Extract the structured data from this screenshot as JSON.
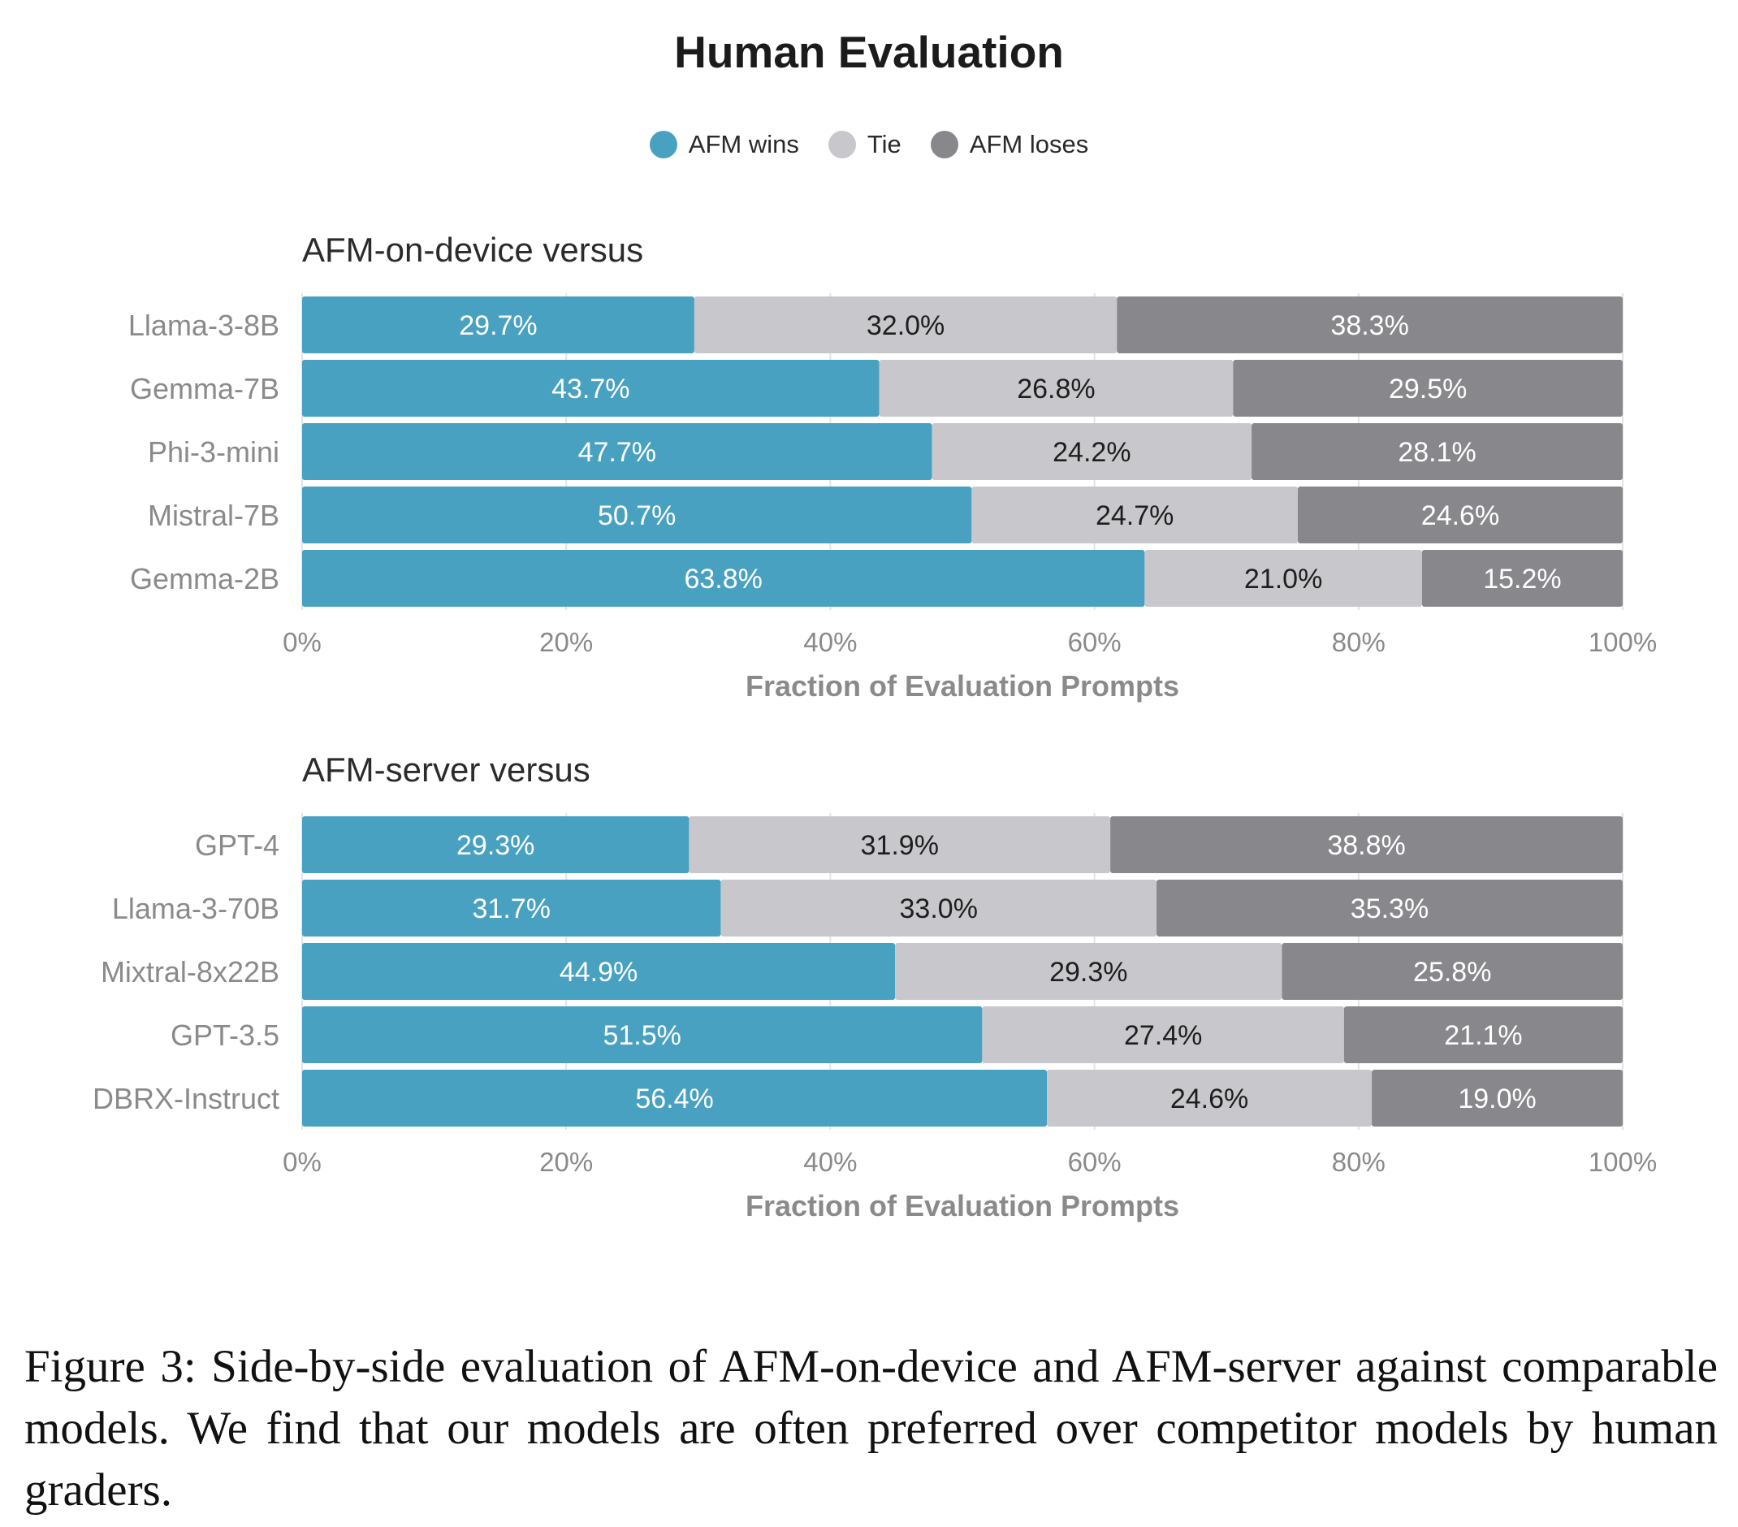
{
  "title": "Human Evaluation",
  "legend": [
    {
      "label": "AFM wins",
      "color": "#48a1c1"
    },
    {
      "label": "Tie",
      "color": "#c8c8cc"
    },
    {
      "label": "AFM loses",
      "color": "#88888c"
    }
  ],
  "chart_data": [
    {
      "type": "bar",
      "orientation": "horizontal",
      "stacked": true,
      "title": "AFM-on-device versus",
      "xlabel": "Fraction of Evaluation Prompts",
      "xlim": [
        0,
        100
      ],
      "xticks": [
        "0%",
        "20%",
        "40%",
        "60%",
        "80%",
        "100%"
      ],
      "grid": true,
      "categories": [
        "Llama-3-8B",
        "Gemma-7B",
        "Phi-3-mini",
        "Mistral-7B",
        "Gemma-2B"
      ],
      "series": [
        {
          "name": "AFM wins",
          "values": [
            29.7,
            43.7,
            47.7,
            50.7,
            63.8
          ],
          "labels": [
            "29.7%",
            "43.7%",
            "47.7%",
            "50.7%",
            "63.8%"
          ]
        },
        {
          "name": "Tie",
          "values": [
            32.0,
            26.8,
            24.2,
            24.7,
            21.0
          ],
          "labels": [
            "32.0%",
            "26.8%",
            "24.2%",
            "24.7%",
            "21.0%"
          ]
        },
        {
          "name": "AFM loses",
          "values": [
            38.3,
            29.5,
            28.1,
            24.6,
            15.2
          ],
          "labels": [
            "38.3%",
            "29.5%",
            "28.1%",
            "24.6%",
            "15.2%"
          ]
        }
      ]
    },
    {
      "type": "bar",
      "orientation": "horizontal",
      "stacked": true,
      "title": "AFM-server versus",
      "xlabel": "Fraction of Evaluation Prompts",
      "xlim": [
        0,
        100
      ],
      "xticks": [
        "0%",
        "20%",
        "40%",
        "60%",
        "80%",
        "100%"
      ],
      "grid": true,
      "categories": [
        "GPT-4",
        "Llama-3-70B",
        "Mixtral-8x22B",
        "GPT-3.5",
        "DBRX-Instruct"
      ],
      "series": [
        {
          "name": "AFM wins",
          "values": [
            29.3,
            31.7,
            44.9,
            51.5,
            56.4
          ],
          "labels": [
            "29.3%",
            "31.7%",
            "44.9%",
            "51.5%",
            "56.4%"
          ]
        },
        {
          "name": "Tie",
          "values": [
            31.9,
            33.0,
            29.3,
            27.4,
            24.6
          ],
          "labels": [
            "31.9%",
            "33.0%",
            "29.3%",
            "27.4%",
            "24.6%"
          ]
        },
        {
          "name": "AFM loses",
          "values": [
            38.8,
            35.3,
            25.8,
            21.1,
            19.0
          ],
          "labels": [
            "38.8%",
            "35.3%",
            "25.8%",
            "21.1%",
            "19.0%"
          ]
        }
      ]
    }
  ],
  "caption": "Figure 3: Side-by-side evaluation of AFM-on-device and AFM-server against comparable models. We find that our models are often preferred over competitor models by human graders."
}
